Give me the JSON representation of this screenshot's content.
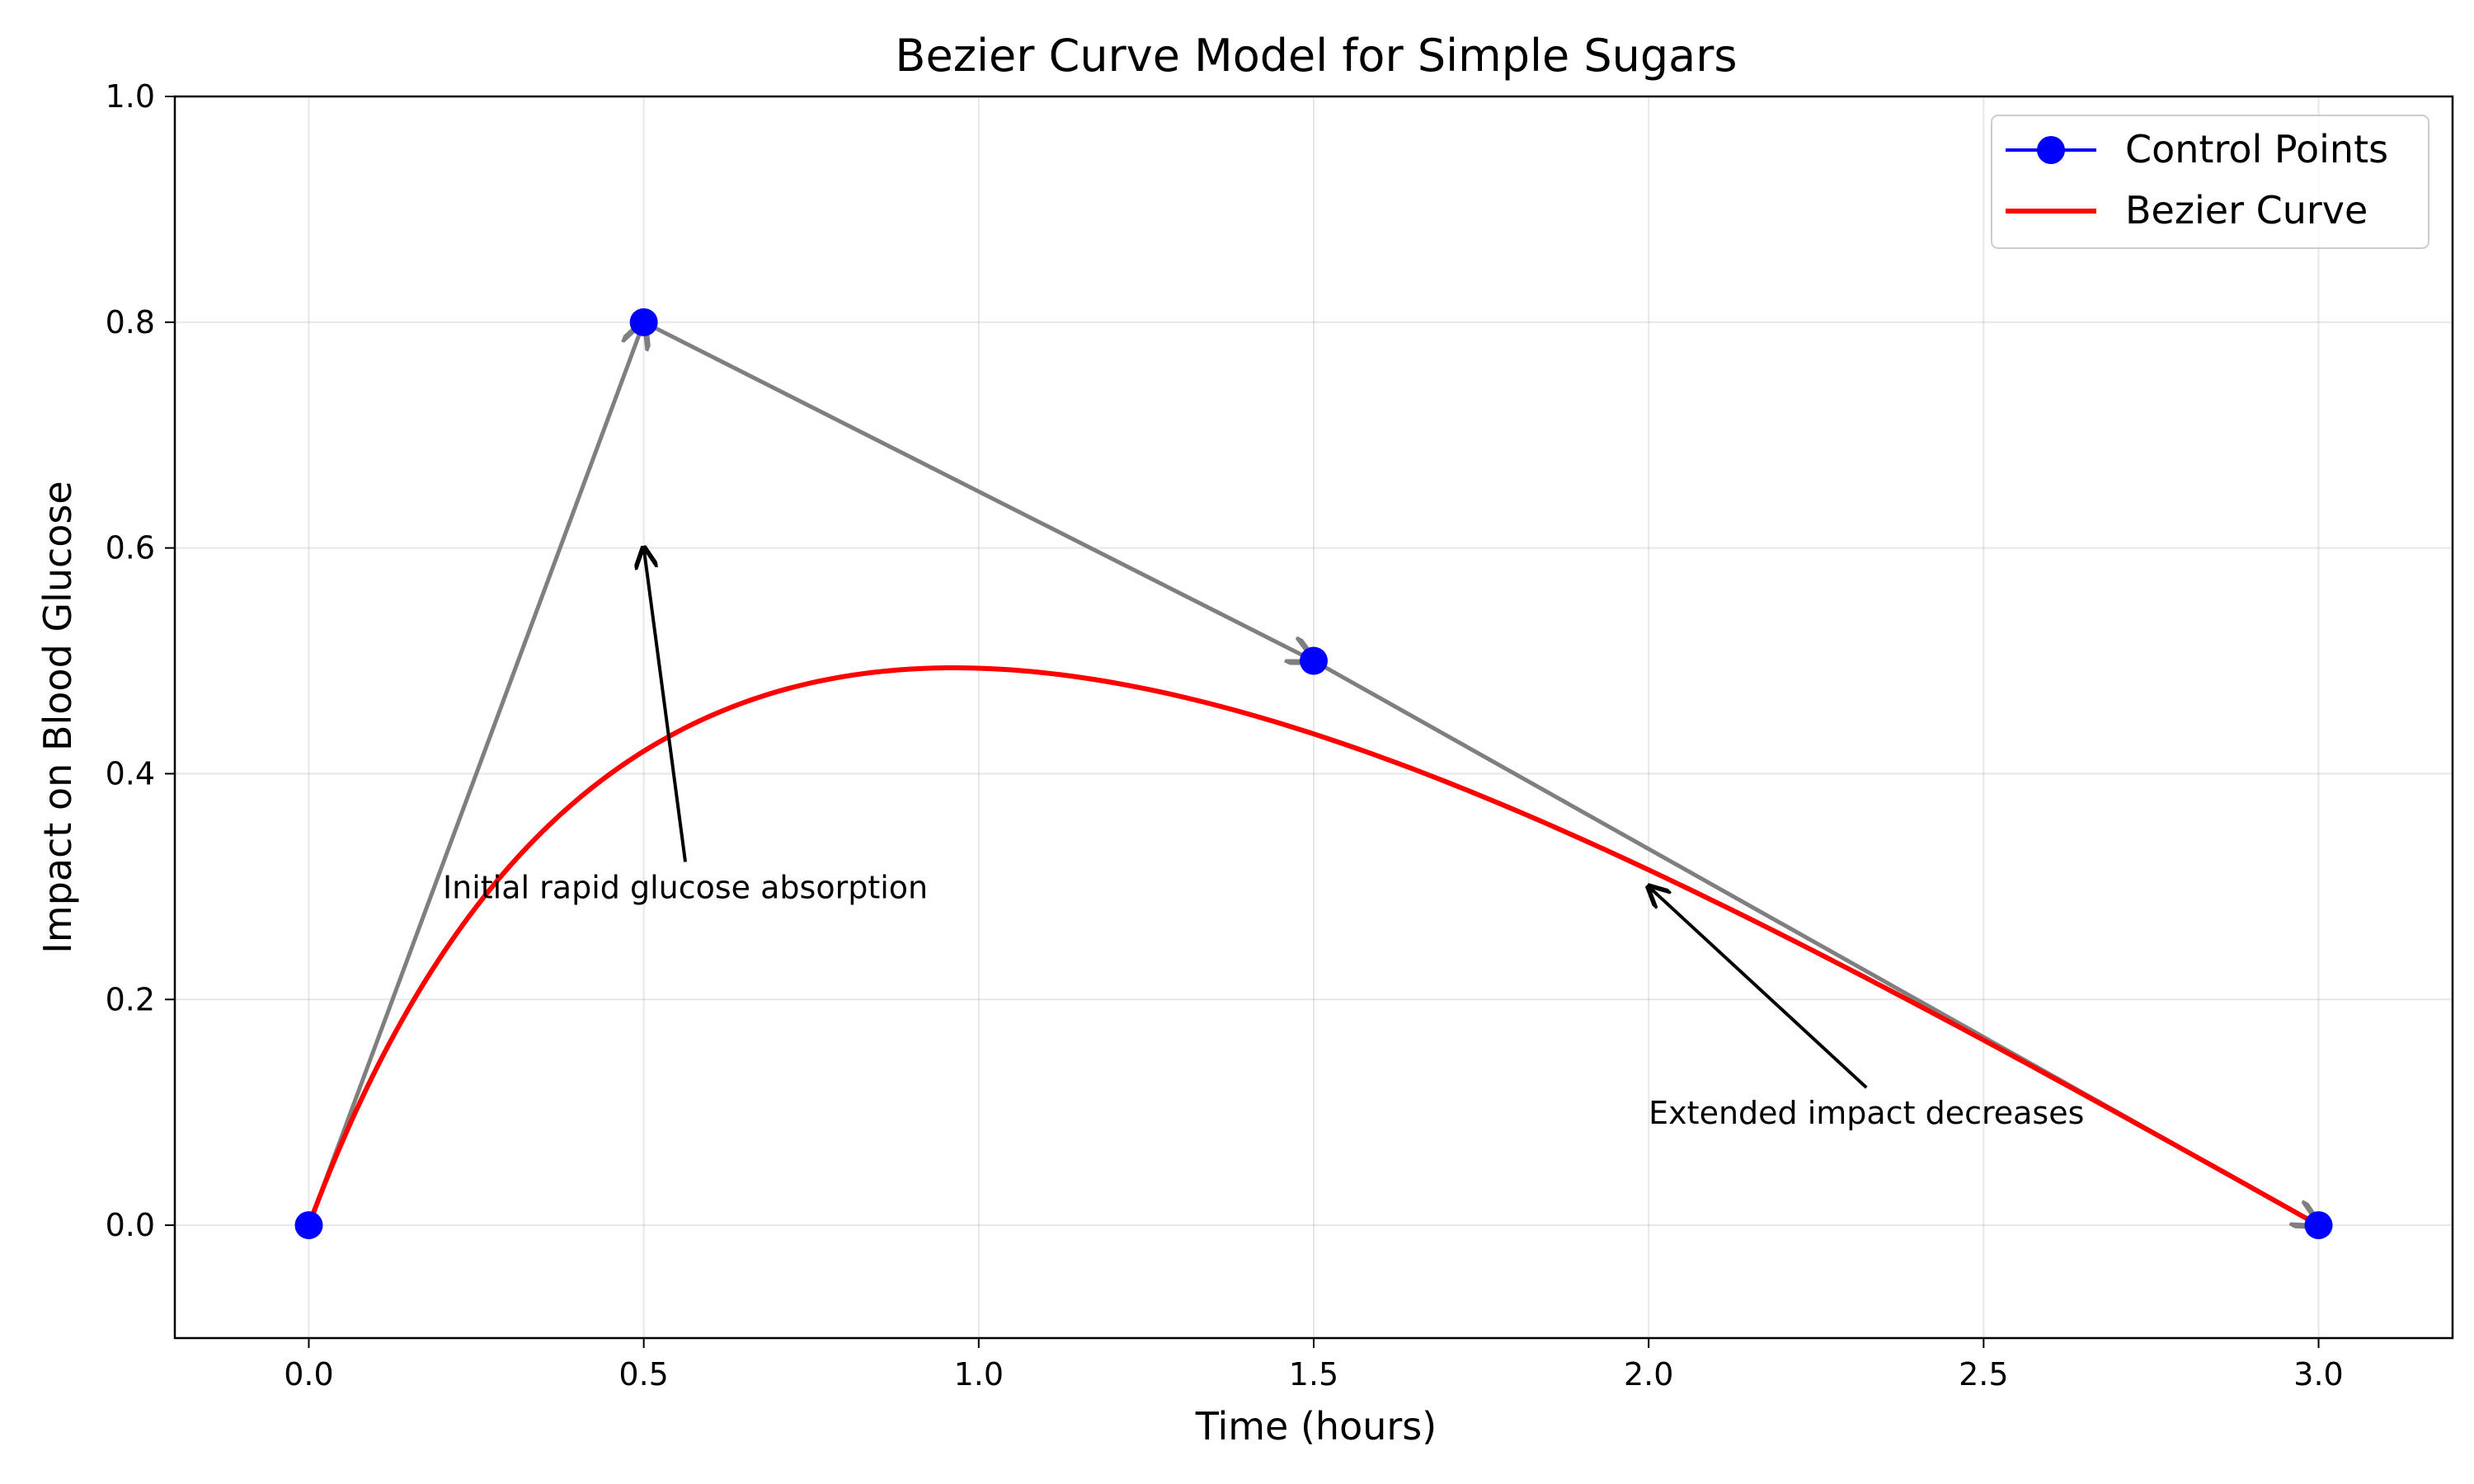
{
  "chart_data": {
    "type": "line",
    "title": "Bezier Curve Model for Simple Sugars",
    "xlabel": "Time (hours)",
    "ylabel": "Impact on Blood Glucose",
    "xlim": [
      -0.2,
      3.2
    ],
    "ylim": [
      -0.1,
      1.0
    ],
    "xticks": [
      "0.0",
      "0.5",
      "1.0",
      "1.5",
      "2.0",
      "2.5",
      "3.0"
    ],
    "yticks": [
      "0.0",
      "0.2",
      "0.4",
      "0.6",
      "0.8",
      "1.0"
    ],
    "grid": true,
    "legend_position": "top-right",
    "series": [
      {
        "name": "Control Points",
        "kind": "markers-with-arrows",
        "color": "#0000ff",
        "arrow_color": "#7f7f7f",
        "points": [
          {
            "x": 0.0,
            "y": 0.0
          },
          {
            "x": 0.5,
            "y": 0.8
          },
          {
            "x": 1.5,
            "y": 0.5
          },
          {
            "x": 3.0,
            "y": 0.0
          }
        ]
      },
      {
        "name": "Bezier Curve",
        "kind": "cubic-bezier",
        "color": "#ff0000"
      }
    ],
    "annotations": [
      {
        "text": "Initial rapid glucose absorption",
        "text_x": 0.2,
        "text_y": 0.3,
        "arrow_x": 0.5,
        "arrow_y": 0.6
      },
      {
        "text": "Extended impact decreases",
        "text_x": 2.0,
        "text_y": 0.1,
        "arrow_x": 2.0,
        "arrow_y": 0.3
      }
    ]
  }
}
